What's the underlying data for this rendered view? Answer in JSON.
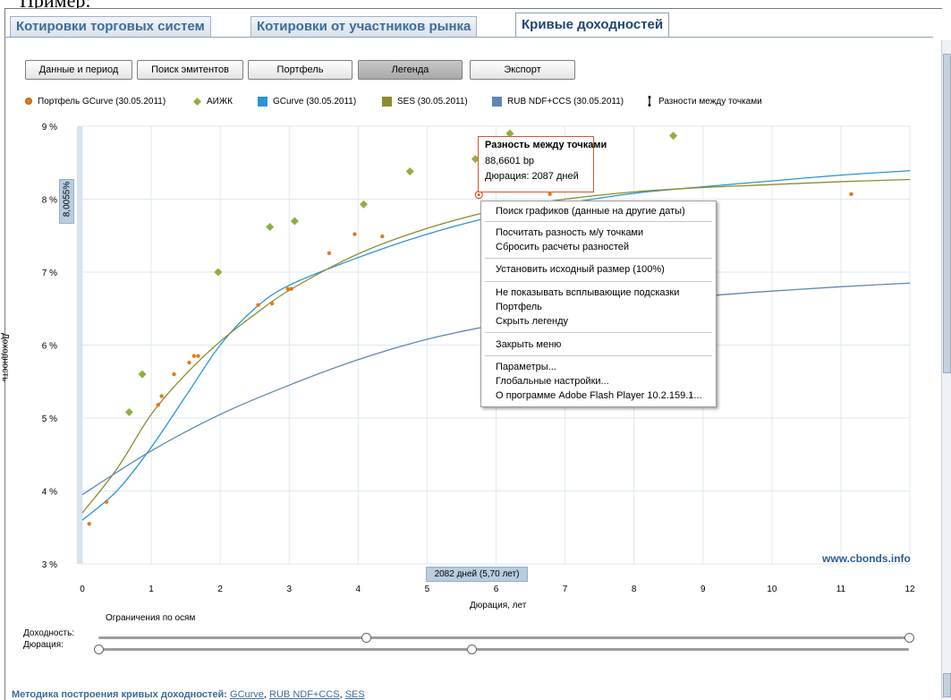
{
  "caption": "Пример:",
  "tabs": [
    {
      "label": "Котировки торговых систем"
    },
    {
      "label": "Котировки от участников рынка"
    },
    {
      "label": "Кривые доходностей"
    }
  ],
  "toolbar": {
    "data_period": "Данные и период",
    "search_issuers": "Поиск эмитентов",
    "portfolio": "Портфель",
    "legend": "Легенда",
    "export": "Экспорт"
  },
  "legend": [
    {
      "label": "Портфель GCurve (30.05.2011)",
      "color": "#e07b1a"
    },
    {
      "label": "АИЖК",
      "color": "#8fb03e"
    },
    {
      "label": "GCurve (30.05.2011)",
      "color": "#2b95d5"
    },
    {
      "label": "SES (30.05.2011)",
      "color": "#8c8c2b"
    },
    {
      "label": "RUB NDF+CCS (30.05.2011)",
      "color": "#5f87b4"
    },
    {
      "label": "Разности между точками",
      "color": "#000000"
    }
  ],
  "chart_data": {
    "type": "scatter",
    "xlabel": "Дюрация, лет",
    "ylabel": "Доходность",
    "xlim": [
      0,
      12
    ],
    "ylim": [
      3,
      9
    ],
    "x_ticks": [
      "0",
      "1",
      "2",
      "3",
      "4",
      "5",
      "6",
      "7",
      "8",
      "9",
      "10",
      "11",
      "12"
    ],
    "y_ticks": [
      "3 %",
      "4 %",
      "5 %",
      "6 %",
      "7 %",
      "8 %",
      "9 %"
    ],
    "grid": true,
    "legend_position": "top",
    "series": [
      {
        "name": "Портфель GCurve (30.05.2011)",
        "kind": "points",
        "color": "#e07b1a",
        "x": [
          0.1,
          0.35,
          1.1,
          1.15,
          1.33,
          1.55,
          1.62,
          1.68,
          2.55,
          2.75,
          2.98,
          3.03,
          3.58,
          3.95,
          4.35,
          5.75,
          6.78,
          11.15
        ],
        "y": [
          3.55,
          3.85,
          5.18,
          5.3,
          5.6,
          5.76,
          5.85,
          5.85,
          6.55,
          6.57,
          6.77,
          6.77,
          7.26,
          7.52,
          7.49,
          8.06,
          8.07,
          8.07
        ]
      },
      {
        "name": "АИЖК",
        "kind": "points",
        "color": "#8fb03e",
        "x": [
          0.68,
          0.87,
          1.97,
          2.72,
          3.08,
          4.08,
          4.75,
          5.7,
          6.2,
          8.57
        ],
        "y": [
          5.08,
          5.6,
          7.0,
          7.62,
          7.7,
          7.93,
          8.38,
          8.55,
          8.9,
          8.87
        ]
      },
      {
        "name": "GCurve (30.05.2011)",
        "kind": "line",
        "color": "#2b95d5",
        "x": [
          0,
          0.5,
          1,
          1.5,
          2,
          2.5,
          3,
          4,
          5,
          6,
          7,
          8,
          9,
          10,
          11,
          12
        ],
        "y": [
          3.6,
          4.0,
          4.6,
          5.3,
          6.0,
          6.5,
          6.82,
          7.2,
          7.52,
          7.77,
          7.94,
          8.08,
          8.17,
          8.25,
          8.33,
          8.39
        ]
      },
      {
        "name": "SES (30.05.2011)",
        "kind": "line",
        "color": "#8c8c2b",
        "x": [
          0,
          0.5,
          1,
          1.5,
          2,
          2.5,
          3,
          4,
          5,
          6,
          7,
          8,
          9,
          10,
          11,
          12
        ],
        "y": [
          3.7,
          4.3,
          5.05,
          5.6,
          6.05,
          6.42,
          6.75,
          7.25,
          7.6,
          7.85,
          8.0,
          8.1,
          8.16,
          8.2,
          8.24,
          8.27
        ]
      },
      {
        "name": "RUB NDF+CCS (30.05.2011)",
        "kind": "line",
        "color": "#5f87b4",
        "x": [
          0,
          1,
          2,
          3,
          4,
          5,
          6,
          7,
          8,
          9,
          10,
          11,
          12
        ],
        "y": [
          3.95,
          4.55,
          5.05,
          5.45,
          5.8,
          6.08,
          6.28,
          6.45,
          6.58,
          6.67,
          6.74,
          6.8,
          6.85
        ]
      }
    ]
  },
  "tooltip": {
    "title": "Разность между точками",
    "line1": "88,6601 bp",
    "line2": "Дюрация: 2087 дней"
  },
  "context_menu": [
    "Поиск графиков (данные на другие даты)",
    "Посчитать разность м/у точками",
    "Сбросить расчеты разностей",
    "Установить исходный размер (100%)",
    "Не показывать всплывающие подсказки",
    "Портфель",
    "Скрыть легенду",
    "Закрыть меню",
    "Параметры...",
    "Глобальные настройки...",
    "О программе Adobe Flash Player 10.2.159.1..."
  ],
  "cursor_x_badge": "2082 дней (5,70 лет)",
  "cursor_y_badge": "8,0055%",
  "watermark": "www.cbonds.info",
  "limits": {
    "title": "Ограничения по осям",
    "yield_label": "Доходность:",
    "duration_label": "Дюрация:",
    "yield_min_frac": 0.33,
    "yield_max_frac": 1.0,
    "duration_min_frac": 0.0,
    "duration_max_frac": 0.46
  },
  "footer": {
    "prefix": "Методика построения кривых доходностей:",
    "links": [
      "GCurve",
      "RUB NDF+CCS",
      "SES"
    ]
  }
}
